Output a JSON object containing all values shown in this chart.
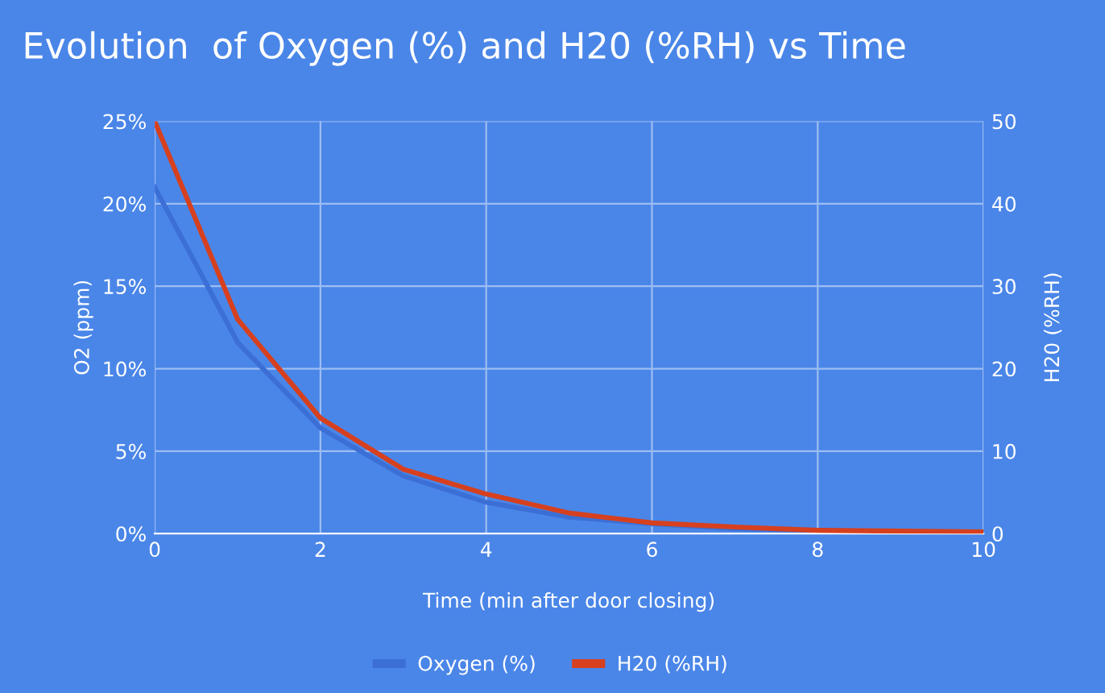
{
  "chart_data": {
    "type": "line",
    "title": "Evolution  of Oxygen (%) and H20 (%RH) vs Time",
    "xlabel": "Time (min after door closing)",
    "ylabel": "O2 (ppm)",
    "y2label": "H20 (%RH)",
    "x": [
      0,
      1,
      2,
      3,
      4,
      5,
      6,
      7,
      8,
      9,
      10
    ],
    "series": [
      {
        "name": "Oxygen (%)",
        "color": "#3c6fd6",
        "values": [
          21,
          11.6,
          6.4,
          3.5,
          1.9,
          1.0,
          0.6,
          0.3,
          0.2,
          0.1,
          0.1
        ]
      },
      {
        "name": "H20 (%RH)",
        "color": "#d6401f",
        "axis": "y2",
        "values": [
          50,
          26,
          14,
          7.8,
          4.8,
          2.5,
          1.3,
          0.8,
          0.4,
          0.3,
          0.2
        ]
      }
    ],
    "xlim": [
      0,
      10
    ],
    "xticks": [
      0,
      2,
      4,
      6,
      8,
      10
    ],
    "ylim": [
      0,
      25
    ],
    "yticks": [
      {
        "value": 0,
        "label": "0%"
      },
      {
        "value": 5,
        "label": "5%"
      },
      {
        "value": 10,
        "label": "10%"
      },
      {
        "value": 15,
        "label": "15%"
      },
      {
        "value": 20,
        "label": "20%"
      },
      {
        "value": 25,
        "label": "25%"
      }
    ],
    "y2lim": [
      0,
      50
    ],
    "y2ticks": [
      0,
      10,
      20,
      30,
      40,
      50
    ],
    "grid": true,
    "legend": "bottom"
  }
}
